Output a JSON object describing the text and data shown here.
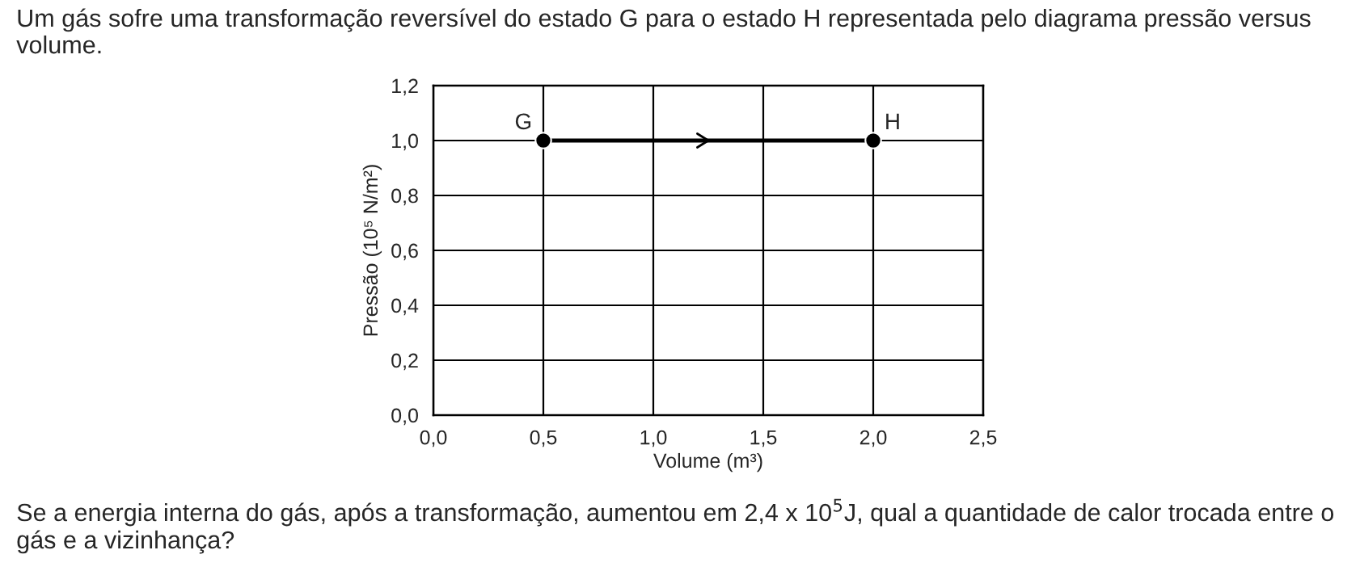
{
  "chart_data": {
    "type": "line",
    "title": "Um gás sofre uma transformação reversível do estado G para o estado H representada pelo diagrama pressão versus volume.",
    "xlabel": "Volume (m³)",
    "ylabel": "Pressão (10⁵ N/m²)",
    "x": [
      0.5,
      2.0
    ],
    "series": [
      {
        "color": "#000000",
        "values": [
          1.0,
          1.0
        ]
      }
    ],
    "marker": "circle",
    "line_style": "solid",
    "grid": true,
    "xlim": [
      0,
      2.5
    ],
    "ylim": [
      0,
      1.2
    ],
    "xticks": [
      {
        "value": 0,
        "label": "0,0"
      },
      {
        "value": 0.5,
        "label": "0,5"
      },
      {
        "value": 1.0,
        "label": "1,0"
      },
      {
        "value": 1.5,
        "label": "1,5"
      },
      {
        "value": 2.0,
        "label": "2,0"
      },
      {
        "value": 2.5,
        "label": "2,5"
      }
    ],
    "yticks": [
      {
        "value": 0,
        "label": "0,0"
      },
      {
        "value": 0.2,
        "label": "0,2"
      },
      {
        "value": 0.4,
        "label": "0,4"
      },
      {
        "value": 0.6,
        "label": "0,6"
      },
      {
        "value": 0.8,
        "label": "0,8"
      },
      {
        "value": 1.0,
        "label": "1,0"
      },
      {
        "value": 1.2,
        "label": "1,2"
      }
    ],
    "annotations": [
      {
        "text": "G",
        "x": 0.5,
        "y": 1.0
      },
      {
        "text": "H",
        "x": 2.0,
        "y": 1.0
      },
      "Se a energia interna do gás, após a transformação, aumentou em 2,4 x 10$^{5}$J, qual a quantidade de calor trocada entre o gás e a vizinhança?"
    ]
  }
}
